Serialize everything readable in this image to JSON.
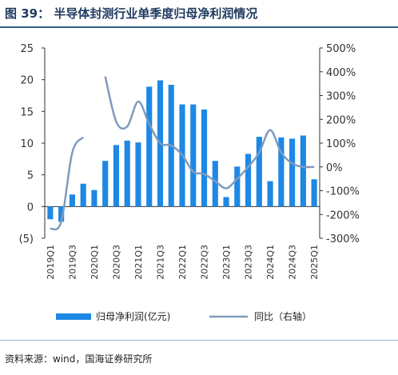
{
  "title": "图 39：  半导体封测行业单季度归母净利润情况",
  "source": "资料来源：wind，国海证券研究所",
  "colors": {
    "bar": "#1e88e5",
    "line": "#7f9bbd",
    "title": "#1f3a5f",
    "negative_tick": "#e00000"
  },
  "chart_data": {
    "type": "bar",
    "categories": [
      "2019Q1",
      "2019Q2",
      "2019Q3",
      "2019Q4",
      "2020Q1",
      "2020Q2",
      "2020Q3",
      "2020Q4",
      "2021Q1",
      "2021Q2",
      "2021Q3",
      "2021Q4",
      "2022Q1",
      "2022Q2",
      "2022Q3",
      "2022Q4",
      "2023Q1",
      "2023Q2",
      "2023Q3",
      "2023Q4",
      "2024Q1",
      "2024Q2",
      "2024Q3",
      "2024Q4",
      "2025Q1"
    ],
    "x_tick_labels": [
      "2019Q1",
      "2019Q3",
      "2020Q1",
      "2020Q3",
      "2021Q1",
      "2021Q3",
      "2022Q1",
      "2022Q3",
      "2023Q1",
      "2023Q3",
      "2024Q1",
      "2024Q3",
      "2025Q1"
    ],
    "series": [
      {
        "name": "归母净利润(亿元)",
        "type": "bar",
        "axis": "left",
        "values": [
          -2.0,
          -2.4,
          1.9,
          3.6,
          2.6,
          7.2,
          9.7,
          10.4,
          10.1,
          18.9,
          19.9,
          19.2,
          16.1,
          16.1,
          15.3,
          7.2,
          1.5,
          6.3,
          8.3,
          11.0,
          4.0,
          10.9,
          10.7,
          11.2,
          4.3
        ]
      },
      {
        "name": "同比（右轴）",
        "type": "line",
        "axis": "right",
        "values": [
          -260,
          -230,
          60,
          125,
          null,
          380,
          190,
          170,
          275,
          180,
          100,
          90,
          50,
          -20,
          -30,
          -60,
          -90,
          -50,
          0,
          60,
          155,
          60,
          15,
          0,
          0
        ]
      }
    ],
    "y_left": {
      "ylim": [
        -5,
        25
      ],
      "ticks": [
        -5,
        0,
        5,
        10,
        15,
        20,
        25
      ],
      "tick_labels": [
        "(5)",
        "0",
        "5",
        "10",
        "15",
        "20",
        "25"
      ]
    },
    "y_right": {
      "ylim": [
        -300,
        500
      ],
      "ticks": [
        -300,
        -200,
        -100,
        0,
        100,
        200,
        300,
        400,
        500
      ],
      "tick_labels": [
        "-300%",
        "-200%",
        "-100%",
        "0%",
        "100%",
        "200%",
        "300%",
        "400%",
        "500%"
      ]
    },
    "grid": false,
    "legend": {
      "position": "bottom",
      "entries": [
        "归母净利润(亿元)",
        "同比（右轴）"
      ]
    }
  }
}
